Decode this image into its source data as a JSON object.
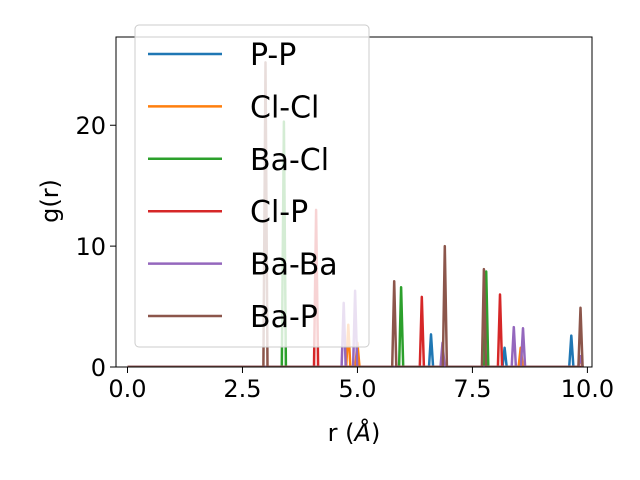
{
  "chart_data": {
    "type": "line",
    "title": "",
    "xlabel": "r (",
    "xlabel_symbol": "Å",
    "xlabel_close": ")",
    "ylabel": "g(r)",
    "xlim": [
      -0.25,
      10.1
    ],
    "ylim": [
      0,
      27.3
    ],
    "xticks": [
      0.0,
      2.5,
      5.0,
      7.5,
      10.0
    ],
    "xtick_labels": [
      "0.0",
      "2.5",
      "5.0",
      "7.5",
      "10.0"
    ],
    "yticks": [
      0,
      10,
      20
    ],
    "ytick_labels": [
      "0",
      "10",
      "20"
    ],
    "grid": false,
    "legend_position": "upper-left",
    "series": [
      {
        "name": "P-P",
        "color": "#1f77b4",
        "peaks": [
          [
            6.6,
            2.7
          ],
          [
            8.2,
            1.6
          ],
          [
            9.65,
            2.6
          ]
        ]
      },
      {
        "name": "Cl-Cl",
        "color": "#ff7f0e",
        "peaks": [
          [
            4.8,
            3.5
          ],
          [
            5.0,
            2.0
          ],
          [
            8.55,
            1.6
          ],
          [
            9.85,
            0.8
          ]
        ]
      },
      {
        "name": "Ba-Cl",
        "color": "#2ca02c",
        "peaks": [
          [
            3.4,
            20.3
          ],
          [
            5.95,
            6.6
          ],
          [
            7.8,
            7.9
          ]
        ]
      },
      {
        "name": "Cl-P",
        "color": "#d62728",
        "peaks": [
          [
            4.1,
            13.0
          ],
          [
            6.4,
            5.8
          ],
          [
            8.1,
            6.0
          ]
        ]
      },
      {
        "name": "Ba-Ba",
        "color": "#9467bd",
        "peaks": [
          [
            4.7,
            5.3
          ],
          [
            4.95,
            6.3
          ],
          [
            6.85,
            2.0
          ],
          [
            8.4,
            3.3
          ],
          [
            8.6,
            3.2
          ],
          [
            9.85,
            0.9
          ]
        ]
      },
      {
        "name": "Ba-P",
        "color": "#8c564b",
        "peaks": [
          [
            3.0,
            25.2
          ],
          [
            5.8,
            7.1
          ],
          [
            6.9,
            10.0
          ],
          [
            7.75,
            8.1
          ],
          [
            9.85,
            4.9
          ]
        ]
      }
    ]
  }
}
